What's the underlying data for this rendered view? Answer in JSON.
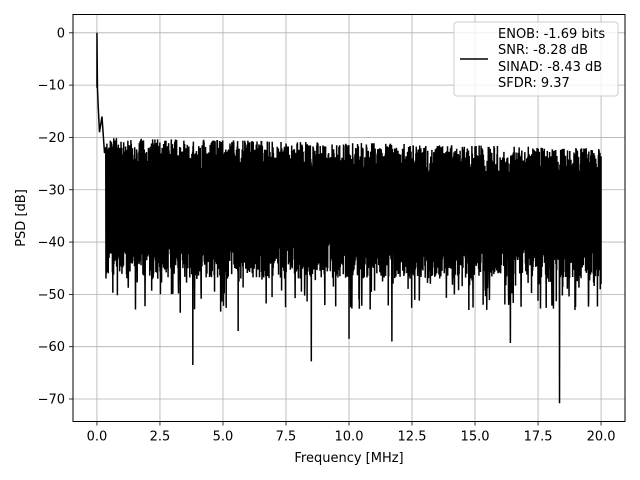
{
  "chart_data": {
    "type": "line",
    "xlabel": "Frequency [MHz]",
    "ylabel": "PSD [dB]",
    "xlim": [
      -0.95,
      20.95
    ],
    "ylim": [
      -74.3,
      3.5
    ],
    "x_ticks": [
      0.0,
      2.5,
      5.0,
      7.5,
      10.0,
      12.5,
      15.0,
      17.5,
      20.0
    ],
    "x_tick_labels": [
      "0.0",
      "2.5",
      "5.0",
      "7.5",
      "10.0",
      "12.5",
      "15.0",
      "17.5",
      "20.0"
    ],
    "y_ticks": [
      0,
      -10,
      -20,
      -30,
      -40,
      -50,
      -60,
      -70
    ],
    "y_tick_labels": [
      "0",
      "−10",
      "−20",
      "−30",
      "−40",
      "−50",
      "−60",
      "−70"
    ],
    "grid": true,
    "legend_position": "top-right",
    "series": [
      {
        "name": "ENOB: -1.69 bits\nSNR: -8.28 dB\nSINAD: -8.43 dB\nSFDR: 9.37",
        "legend_lines": [
          "ENOB: -1.69 bits",
          "SNR: -8.28 dB",
          "SINAD: -8.43 dB",
          "SFDR: 9.37"
        ],
        "color": "#000000",
        "x_range": [
          0,
          20
        ],
        "noise_floor_db": -32,
        "noise_band_db": [
          -45,
          -20
        ],
        "peak": {
          "x": 0.0,
          "y": 0.0
        },
        "low_freq_points": [
          {
            "x": 0.02,
            "y": -10.5
          },
          {
            "x": 0.05,
            "y": -14
          },
          {
            "x": 0.1,
            "y": -19
          },
          {
            "x": 0.2,
            "y": -16
          },
          {
            "x": 0.3,
            "y": -23
          }
        ],
        "notable_dips": [
          {
            "x": 3.8,
            "y": -63.5
          },
          {
            "x": 8.5,
            "y": -62.8
          },
          {
            "x": 10.0,
            "y": -58.5
          },
          {
            "x": 11.7,
            "y": -59.0
          },
          {
            "x": 16.4,
            "y": -59.3
          },
          {
            "x": 18.35,
            "y": -70.8
          },
          {
            "x": 5.6,
            "y": -57.0
          },
          {
            "x": 3.3,
            "y": -53.5
          },
          {
            "x": 4.9,
            "y": -53.3
          }
        ]
      }
    ]
  }
}
